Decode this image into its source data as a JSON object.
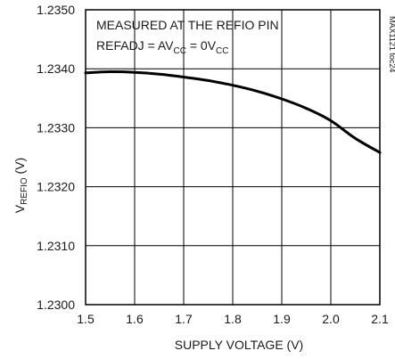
{
  "chart_data": {
    "type": "line",
    "title": "",
    "xlabel": "SUPPLY VOLTAGE (V)",
    "ylabel": {
      "main": "V",
      "sub": "REFIO",
      "unit": " (V)"
    },
    "xlim": [
      1.5,
      2.1
    ],
    "ylim": [
      1.23,
      1.235
    ],
    "xticks": [
      "1.5",
      "1.6",
      "1.7",
      "1.8",
      "1.9",
      "2.0",
      "2.1"
    ],
    "yticks": [
      "1.2300",
      "1.2310",
      "1.2320",
      "1.2330",
      "1.2340",
      "1.2350"
    ],
    "grid": true,
    "annotation_line1": "MEASURED AT THE REFIO PIN",
    "annotation_line2": {
      "a": "REFADJ = AV",
      "b": "CC",
      "c": " = 0V",
      "d": "CC"
    },
    "figure_code": "MAX1121 toc24",
    "series": [
      {
        "x": [
          1.5,
          1.55,
          1.6,
          1.65,
          1.7,
          1.75,
          1.8,
          1.85,
          1.9,
          1.95,
          2.0,
          2.05,
          2.1
        ],
        "values": [
          1.23393,
          1.23395,
          1.23394,
          1.23391,
          1.23386,
          1.2338,
          1.23372,
          1.23362,
          1.23349,
          1.23333,
          1.23312,
          1.23282,
          1.23258
        ]
      }
    ],
    "color": "#000000"
  }
}
